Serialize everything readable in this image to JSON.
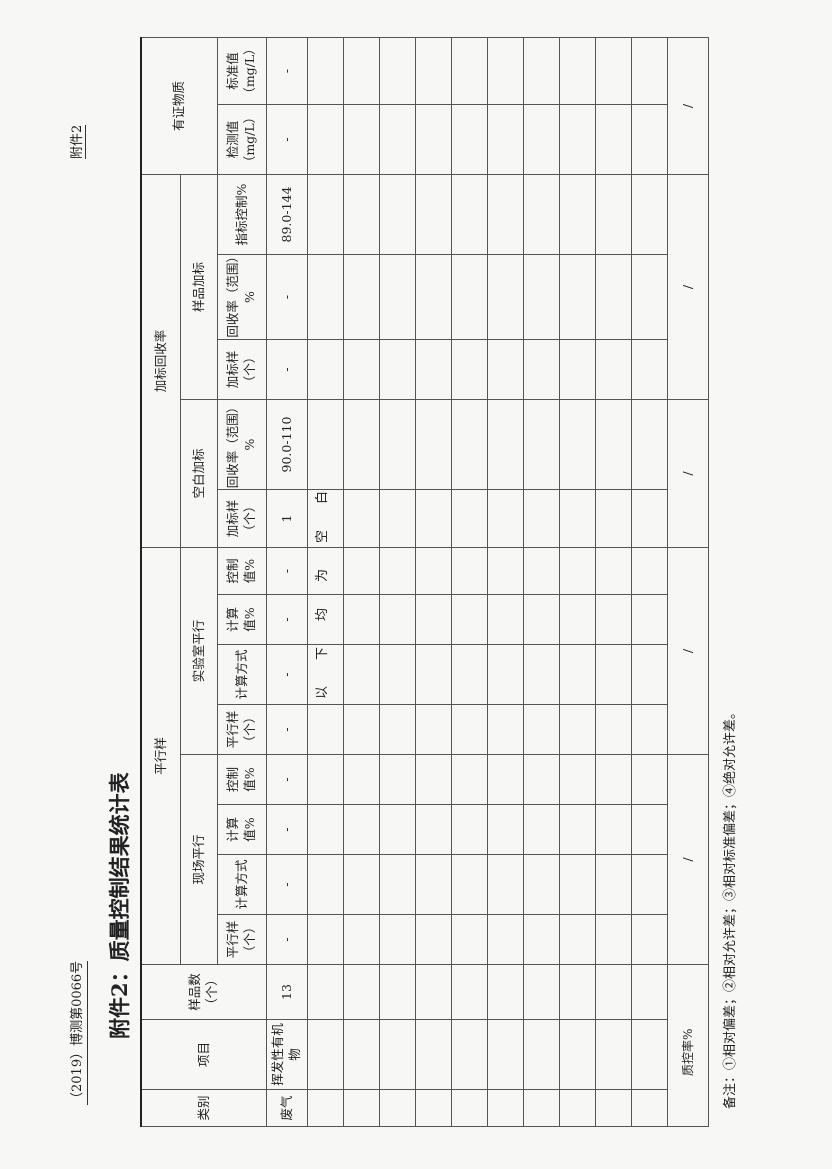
{
  "header": {
    "doc_number": "（2019）博测第0066号",
    "annex": "附件2",
    "title": "附件2：质量控制结果统计表"
  },
  "table": {
    "col_category": "类别",
    "col_item": "项目",
    "col_count": "样品数（个）",
    "group_parallel": "平行样",
    "group_recovery": "加标回收率",
    "group_crm": "有证物质",
    "sub_field": "现场平行",
    "sub_lab": "实验室平行",
    "sub_blank": "空白加标",
    "sub_sample": "样品加标",
    "cols": [
      "平行样（个）",
      "计算方式",
      "计算值%",
      "控制值%",
      "平行样（个）",
      "计算方式",
      "计算值%",
      "控制值%",
      "加标样（个）",
      "回收率（范围）%",
      "加标样（个）",
      "回收率（范围）%",
      "指标控制%",
      "检测值（mg/L）",
      "标准值（mg/L）"
    ],
    "row": {
      "category": "废气",
      "item": "挥发性有机物",
      "count": "13",
      "values": [
        "-",
        "-",
        "-",
        "-",
        "-",
        "-",
        "-",
        "-",
        "1",
        "90.0-110",
        "-",
        "-",
        "89.0-144",
        "-",
        "-"
      ]
    },
    "blank_note": "以下均为空白",
    "qc_label": "质控率%",
    "qc_values": [
      "/",
      "/",
      "/",
      "/",
      "/"
    ]
  },
  "note": "备注：①相对偏差；②相对允许差；③相对标准偏差；④绝对允许差。"
}
